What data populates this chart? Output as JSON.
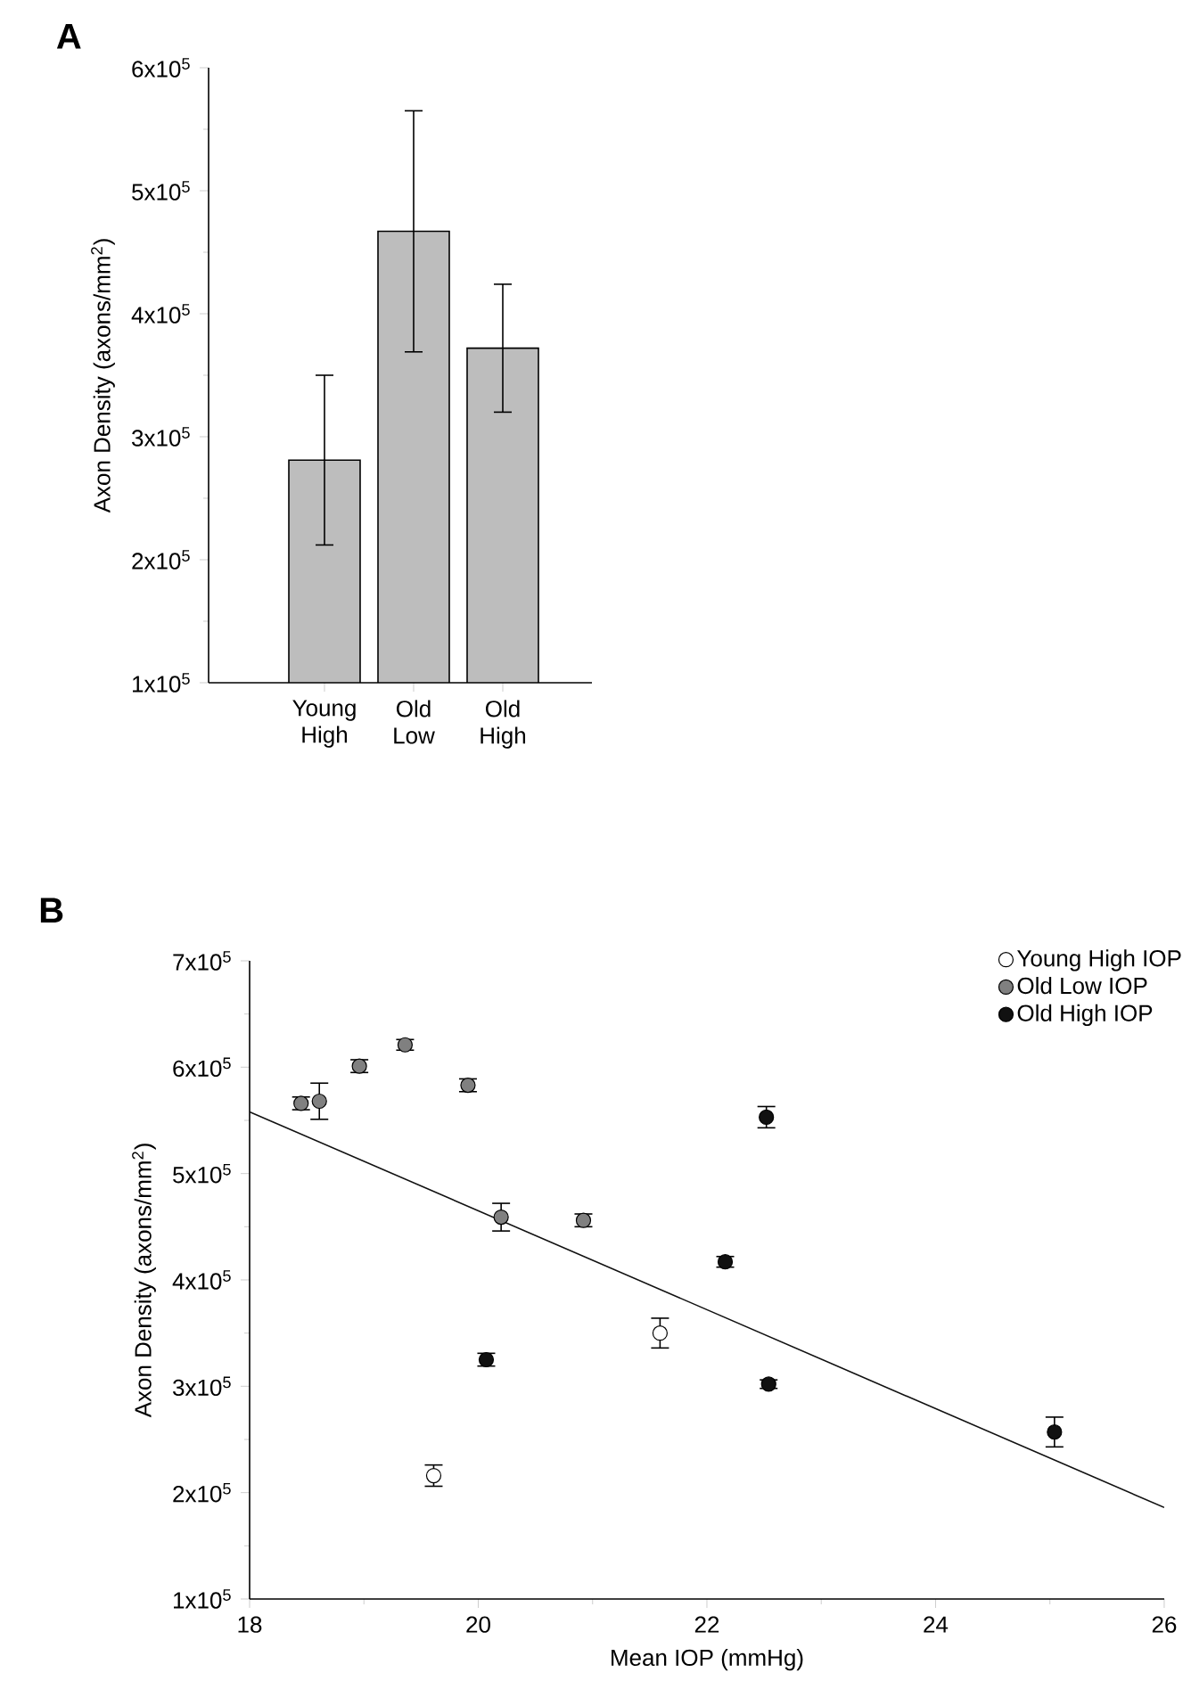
{
  "chart_data": [
    {
      "type": "bar",
      "title": "A",
      "ylabel": "Axon Density (axons/mm$^{2}$)",
      "categories": [
        "Young High",
        "Old Low",
        "Old High"
      ],
      "values": [
        281000,
        467000,
        372000
      ],
      "errors": [
        69000,
        98000,
        52000
      ],
      "color": "#bdbdbd",
      "ylim": [
        100000,
        600000
      ],
      "yticks": [
        {
          "value": 100000,
          "label": "1x10$^{5}$"
        },
        {
          "value": 200000,
          "label": "2x10$^{5}$"
        },
        {
          "value": 300000,
          "label": "3x10$^{5}$"
        },
        {
          "value": 400000,
          "label": "4x10$^{5}$"
        },
        {
          "value": 500000,
          "label": "5x10$^{5}$"
        },
        {
          "value": 600000,
          "label": "6x10$^{5}$"
        }
      ]
    },
    {
      "type": "scatter",
      "title": "B",
      "xlabel": "Mean IOP (mmHg)",
      "ylabel": "Axon Density (axons/mm$^{2}$)",
      "xlim": [
        18,
        26
      ],
      "xticks": [
        18,
        20,
        22,
        24,
        26
      ],
      "ylim": [
        100000,
        700000
      ],
      "yticks": [
        {
          "value": 100000,
          "label": "1x10$^{5}$"
        },
        {
          "value": 200000,
          "label": "2x10$^{5}$"
        },
        {
          "value": 300000,
          "label": "3x10$^{5}$"
        },
        {
          "value": 400000,
          "label": "4x10$^{5}$"
        },
        {
          "value": 500000,
          "label": "5x10$^{5}$"
        },
        {
          "value": 600000,
          "label": "6x10$^{5}$"
        },
        {
          "value": 700000,
          "label": "7x10$^{5}$"
        }
      ],
      "legend": "top right",
      "series": [
        {
          "name": "Young High IOP",
          "marker": "circle",
          "color": "#ffffff",
          "x": [
            19.61,
            21.59
          ],
          "values": [
            216000,
            350000
          ],
          "errors": [
            10000,
            14000
          ]
        },
        {
          "name": "Old Low IOP",
          "marker": "circle",
          "color": "#808080",
          "x": [
            18.45,
            18.61,
            18.96,
            19.36,
            19.91,
            20.2,
            20.92
          ],
          "values": [
            566000,
            568000,
            601000,
            621000,
            583000,
            459000,
            456000
          ],
          "errors": [
            6000,
            17000,
            6000,
            5000,
            6000,
            13000,
            6000
          ]
        },
        {
          "name": "Old High IOP",
          "marker": "circle",
          "color": "#111111",
          "x": [
            20.07,
            22.52,
            22.16,
            22.54,
            25.04
          ],
          "values": [
            325000,
            553000,
            417000,
            302000,
            257000
          ],
          "errors": [
            6000,
            10000,
            5000,
            4000,
            14000
          ]
        },
        {
          "type": "line",
          "marker": "none",
          "color": "#111111",
          "x": [
            18,
            26
          ],
          "values": [
            558000,
            186000
          ]
        }
      ]
    }
  ]
}
